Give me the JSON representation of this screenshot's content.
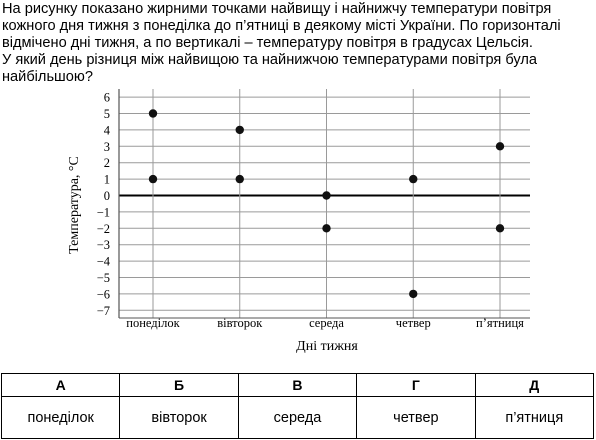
{
  "question": {
    "lines": [
      "На рисунку показано жирними точками найвищу і найнижчу температури повітря",
      "кожного дня тижня з понеділка до п’ятниці в деякому місті України. По горизонталі",
      "відмічено дні тижня, а по вертикалі – температуру повітря в градусах Цельсія.",
      "У який день різниця між найвищою та найнижчою температурами повітря була",
      "найбільшою?"
    ]
  },
  "chart_data": {
    "type": "scatter",
    "title": "",
    "xlabel": "Дні тижня",
    "ylabel": "Температура, °С",
    "categories": [
      "понеділок",
      "вівторок",
      "середа",
      "четвер",
      "п’ятниця"
    ],
    "ylim": [
      -7,
      6
    ],
    "yticks": [
      6,
      5,
      4,
      3,
      2,
      1,
      0,
      -1,
      -2,
      -3,
      -4,
      -5,
      -6,
      -7
    ],
    "grid": true,
    "series": [
      {
        "values": [
          5,
          4,
          0,
          1,
          3
        ]
      },
      {
        "values": [
          1,
          1,
          -2,
          -6,
          -2
        ]
      }
    ]
  },
  "answers": [
    {
      "letter": "А",
      "value": "понеділок"
    },
    {
      "letter": "Б",
      "value": "вівторок"
    },
    {
      "letter": "В",
      "value": "середа"
    },
    {
      "letter": "Г",
      "value": "четвер"
    },
    {
      "letter": "Д",
      "value": "п’ятниця"
    }
  ]
}
